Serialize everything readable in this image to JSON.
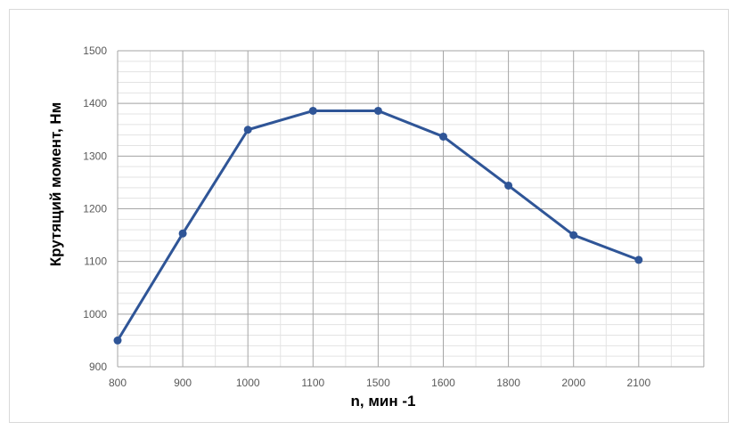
{
  "chart_data": {
    "type": "line",
    "title": "",
    "xlabel": "n, мин -1",
    "ylabel": "Крутящий момент, Нм",
    "categories": [
      "800",
      "900",
      "1000",
      "1100",
      "1500",
      "1600",
      "1800",
      "2000",
      "2100"
    ],
    "series": [
      {
        "values": [
          950,
          1153,
          1350,
          1386,
          1386,
          1337,
          1244,
          1150,
          1103
        ]
      }
    ],
    "ylim": [
      900,
      1500
    ],
    "yticks": [
      "900",
      "1000",
      "1100",
      "1200",
      "1300",
      "1400",
      "1500"
    ],
    "grid": true,
    "legend": "none",
    "colors": {
      "line": "#2f5597",
      "major_grid": "#a6a6a6",
      "minor_grid": "#e3e3e3"
    }
  }
}
